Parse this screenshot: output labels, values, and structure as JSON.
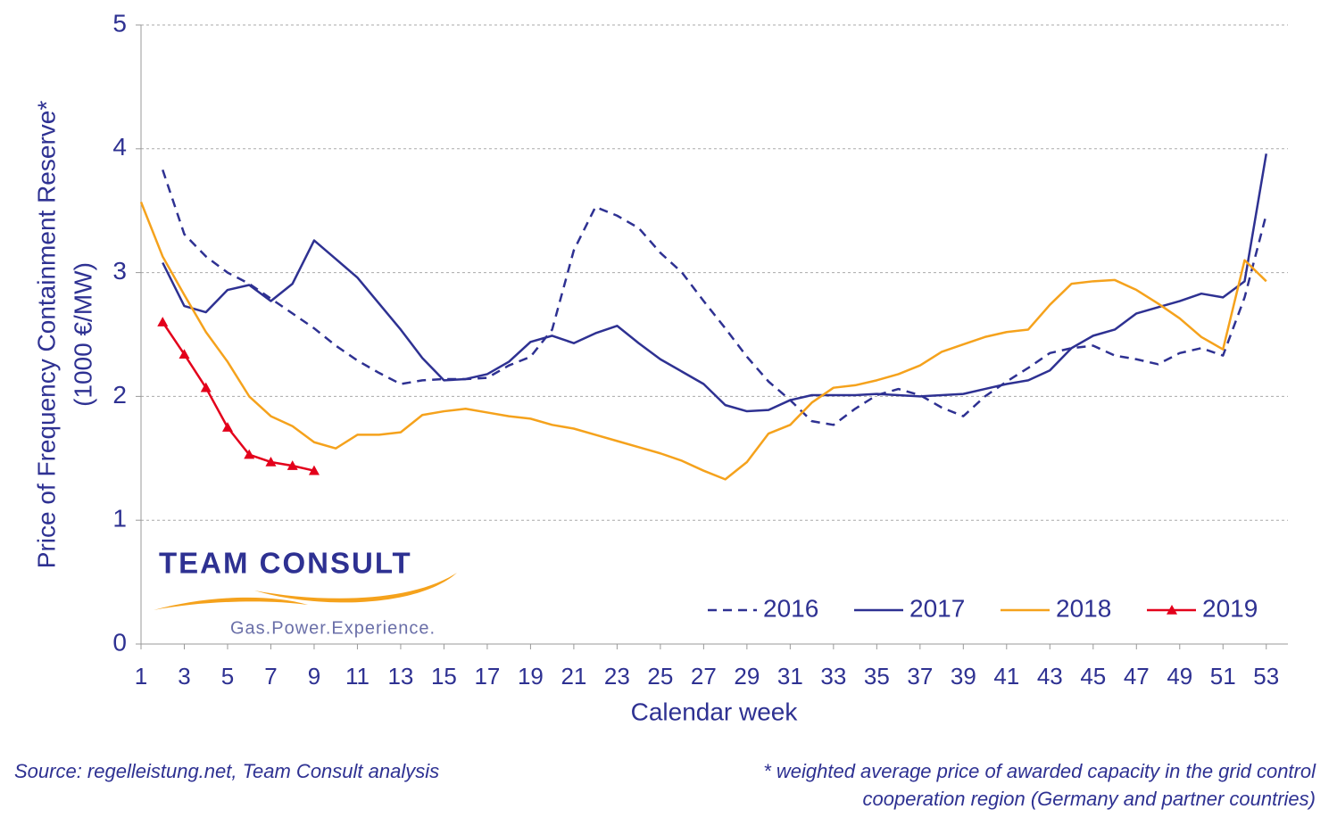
{
  "chart_data": {
    "type": "line",
    "y_label": [
      "Price of Frequency Containment Reserve*",
      "(1000 €/MW)"
    ],
    "x_label": "Calendar week",
    "x": [
      1,
      2,
      3,
      4,
      5,
      6,
      7,
      8,
      9,
      10,
      11,
      12,
      13,
      14,
      15,
      16,
      17,
      18,
      19,
      20,
      21,
      22,
      23,
      24,
      25,
      26,
      27,
      28,
      29,
      30,
      31,
      32,
      33,
      34,
      35,
      36,
      37,
      38,
      39,
      40,
      41,
      42,
      43,
      44,
      45,
      46,
      47,
      48,
      49,
      50,
      51,
      52,
      53
    ],
    "xlim": [
      1,
      54
    ],
    "xticks": [
      1,
      3,
      5,
      7,
      9,
      11,
      13,
      15,
      17,
      19,
      21,
      23,
      25,
      27,
      29,
      31,
      33,
      35,
      37,
      39,
      41,
      43,
      45,
      47,
      49,
      51,
      53
    ],
    "ylim": [
      0,
      5
    ],
    "yticks": [
      0,
      1,
      2,
      3,
      4,
      5
    ],
    "grid": true,
    "legend": "lower right",
    "series": [
      {
        "name": "2016",
        "color": "#2e3192",
        "dash": true,
        "values": [
          null,
          3.83,
          3.31,
          3.13,
          3.0,
          2.91,
          2.79,
          2.67,
          2.55,
          2.41,
          2.29,
          2.19,
          2.1,
          2.13,
          2.14,
          2.14,
          2.15,
          2.25,
          2.32,
          2.54,
          3.18,
          3.53,
          3.46,
          3.36,
          3.16,
          3.0,
          2.77,
          2.55,
          2.32,
          2.12,
          1.97,
          1.8,
          1.77,
          1.9,
          2.01,
          2.06,
          2.01,
          1.91,
          1.84,
          2.0,
          2.12,
          2.23,
          2.35,
          2.39,
          2.41,
          2.33,
          2.3,
          2.26,
          2.35,
          2.39,
          2.33,
          2.8,
          3.47
        ]
      },
      {
        "name": "2017",
        "color": "#2e3192",
        "values": [
          null,
          3.08,
          2.73,
          2.68,
          2.86,
          2.9,
          2.77,
          2.91,
          3.26,
          3.11,
          2.96,
          2.75,
          2.54,
          2.31,
          2.13,
          2.14,
          2.18,
          2.28,
          2.44,
          2.49,
          2.43,
          2.51,
          2.57,
          2.43,
          2.3,
          2.2,
          2.1,
          1.93,
          1.88,
          1.89,
          1.97,
          2.01,
          2.01,
          2.01,
          2.02,
          2.01,
          2.0,
          2.01,
          2.02,
          2.06,
          2.1,
          2.13,
          2.21,
          2.39,
          2.49,
          2.54,
          2.67,
          2.72,
          2.77,
          2.83,
          2.8,
          2.93,
          3.96
        ]
      },
      {
        "name": "2018",
        "color": "#f5a21c",
        "values": [
          3.57,
          3.13,
          2.82,
          2.52,
          2.28,
          2.0,
          1.84,
          1.76,
          1.63,
          1.58,
          1.69,
          1.69,
          1.71,
          1.85,
          1.88,
          1.9,
          1.87,
          1.84,
          1.82,
          1.77,
          1.74,
          1.69,
          1.64,
          1.59,
          1.54,
          1.48,
          1.4,
          1.33,
          1.47,
          1.7,
          1.77,
          1.95,
          2.07,
          2.09,
          2.13,
          2.18,
          2.25,
          2.36,
          2.42,
          2.48,
          2.52,
          2.54,
          2.74,
          2.91,
          2.93,
          2.94,
          2.86,
          2.75,
          2.63,
          2.48,
          2.38,
          3.1,
          2.93
        ]
      },
      {
        "name": "2019",
        "color": "#e3001b",
        "marker": "triangle",
        "values": [
          null,
          2.6,
          2.34,
          2.07,
          1.75,
          1.53,
          1.47,
          1.44,
          1.4,
          null,
          null,
          null,
          null,
          null,
          null,
          null,
          null,
          null,
          null,
          null,
          null,
          null,
          null,
          null,
          null,
          null,
          null,
          null,
          null,
          null,
          null,
          null,
          null,
          null,
          null,
          null,
          null,
          null,
          null,
          null,
          null,
          null,
          null,
          null,
          null,
          null,
          null,
          null,
          null,
          null,
          null,
          null,
          null
        ]
      }
    ],
    "logo": "TEAM CONSULT",
    "tagline": "Gas.Power.Experience.",
    "source": "Source: regelleistung.net, Team Consult analysis",
    "footnote": [
      "* weighted average price of awarded capacity in the grid control",
      "cooperation region (Germany and partner countries)"
    ]
  }
}
